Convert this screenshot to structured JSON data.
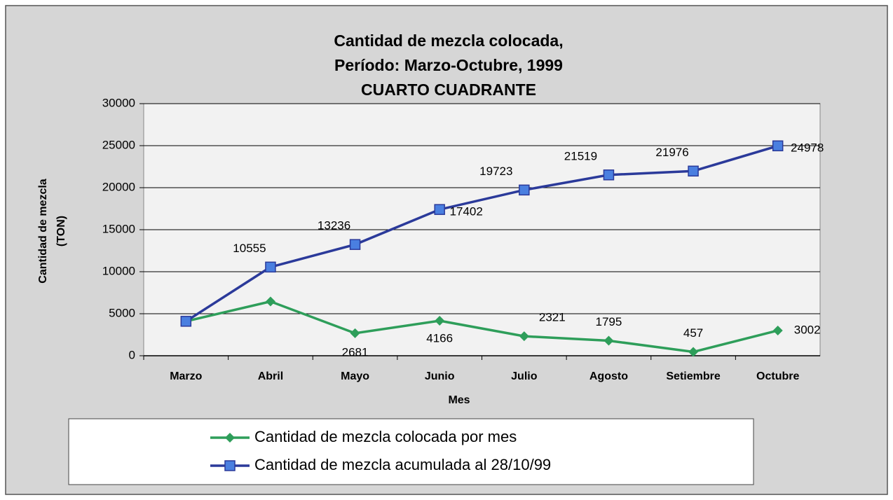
{
  "chart_data": {
    "type": "line",
    "title": [
      "Cantidad de mezcla colocada,",
      "Período:  Marzo-Octubre, 1999",
      "CUARTO CUADRANTE"
    ],
    "categories": [
      "Marzo",
      "Abril",
      "Mayo",
      "Junio",
      "Julio",
      "Agosto",
      "Setiembre",
      "Octubre"
    ],
    "series": [
      {
        "name": "Cantidad de mezcla colocada por mes",
        "color": "#2e9e5a",
        "marker": "diamond",
        "values": [
          4100,
          6455,
          2681,
          4166,
          2321,
          1795,
          457,
          3002
        ],
        "value_labels": [
          null,
          null,
          "2681",
          "4166",
          "2321",
          "1795",
          "457",
          "3002"
        ]
      },
      {
        "name": "Cantidad de mezcla acumulada al 28/10/99",
        "color": "#2b3a9a",
        "marker": "square",
        "values": [
          4100,
          10555,
          13236,
          17402,
          19723,
          21519,
          21976,
          24978
        ],
        "value_labels": [
          null,
          "10555",
          "13236",
          "17402",
          "19723",
          "21519",
          "21976",
          "24978"
        ]
      }
    ],
    "ylim": [
      0,
      30000
    ],
    "yticks": [
      0,
      5000,
      10000,
      15000,
      20000,
      25000,
      30000
    ],
    "y_label": [
      "Cantidad de mezcla",
      "(TON)"
    ],
    "x_label": "Mes",
    "grid": true,
    "legend": "bottom"
  }
}
